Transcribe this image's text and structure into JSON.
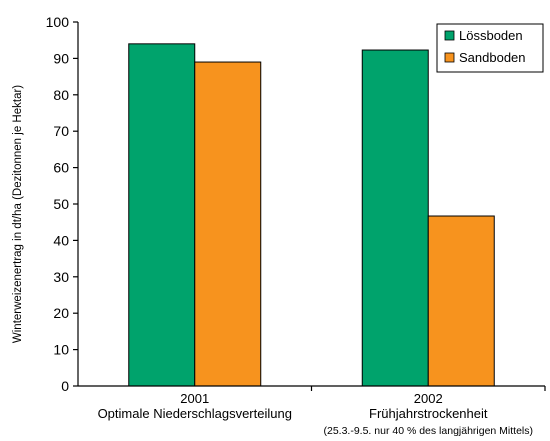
{
  "chart_data": {
    "type": "bar",
    "ylabel": "Winterweizenertrag in dt/ha (Dezitonnen je Hektar)",
    "ylim": [
      0,
      100
    ],
    "yticks": [
      0,
      10,
      20,
      30,
      40,
      50,
      60,
      70,
      80,
      90,
      100
    ],
    "grid": false,
    "legend_position": "top-right",
    "categories": [
      {
        "line1": "2001",
        "line2": "Optimale Niederschlagsverteilung",
        "line3": ""
      },
      {
        "line1": "2002",
        "line2": "Frühjahrstrockenheit",
        "line3": "(25.3.-9.5. nur 40 % des langjährigen Mittels)"
      }
    ],
    "series": [
      {
        "name": "Lössboden",
        "color": "#00a36c",
        "values": [
          94,
          92.3
        ]
      },
      {
        "name": "Sandboden",
        "color": "#f7931e",
        "values": [
          89,
          46.7
        ]
      }
    ]
  }
}
